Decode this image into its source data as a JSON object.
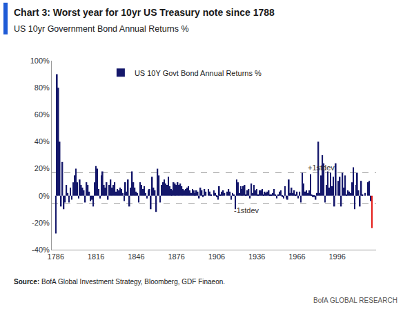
{
  "chart_data": {
    "type": "bar",
    "title": "Chart 3: Worst year for 10yr US Treasury note since 1788",
    "subtitle": "US 10yr Government Bond Annual Returns %",
    "source": "Source: BofA Global Investment Strategy, Bloomberg, GDF Finaeon.",
    "footer": "BofA GLOBAL RESEARCH",
    "x": [
      1786,
      1787,
      1788,
      1789,
      1790,
      1791,
      1792,
      1793,
      1794,
      1795,
      1796,
      1797,
      1798,
      1799,
      1800,
      1801,
      1802,
      1803,
      1804,
      1805,
      1806,
      1807,
      1808,
      1809,
      1810,
      1811,
      1812,
      1813,
      1814,
      1815,
      1816,
      1817,
      1818,
      1819,
      1820,
      1821,
      1822,
      1823,
      1824,
      1825,
      1826,
      1827,
      1828,
      1829,
      1830,
      1831,
      1832,
      1833,
      1834,
      1835,
      1836,
      1837,
      1838,
      1839,
      1840,
      1841,
      1842,
      1843,
      1844,
      1845,
      1846,
      1847,
      1848,
      1849,
      1850,
      1851,
      1852,
      1853,
      1854,
      1855,
      1856,
      1857,
      1858,
      1859,
      1860,
      1861,
      1862,
      1863,
      1864,
      1865,
      1866,
      1867,
      1868,
      1869,
      1870,
      1871,
      1872,
      1873,
      1874,
      1875,
      1876,
      1877,
      1878,
      1879,
      1880,
      1881,
      1882,
      1883,
      1884,
      1885,
      1886,
      1887,
      1888,
      1889,
      1890,
      1891,
      1892,
      1893,
      1894,
      1895,
      1896,
      1897,
      1898,
      1899,
      1900,
      1901,
      1902,
      1903,
      1904,
      1905,
      1906,
      1907,
      1908,
      1909,
      1910,
      1911,
      1912,
      1913,
      1914,
      1915,
      1916,
      1917,
      1918,
      1919,
      1920,
      1921,
      1922,
      1923,
      1924,
      1925,
      1926,
      1927,
      1928,
      1929,
      1930,
      1931,
      1932,
      1933,
      1934,
      1935,
      1936,
      1937,
      1938,
      1939,
      1940,
      1941,
      1942,
      1943,
      1944,
      1945,
      1946,
      1947,
      1948,
      1949,
      1950,
      1951,
      1952,
      1953,
      1954,
      1955,
      1956,
      1957,
      1958,
      1959,
      1960,
      1961,
      1962,
      1963,
      1964,
      1965,
      1966,
      1967,
      1968,
      1969,
      1970,
      1971,
      1972,
      1973,
      1974,
      1975,
      1976,
      1977,
      1978,
      1979,
      1980,
      1981,
      1982,
      1983,
      1984,
      1985,
      1986,
      1987,
      1988,
      1989,
      1990,
      1991,
      1992,
      1993,
      1994,
      1995,
      1996,
      1997,
      1998,
      1999,
      2000,
      2001,
      2002,
      2003,
      2004,
      2005,
      2006,
      2007,
      2008,
      2009,
      2010,
      2011,
      2012,
      2013,
      2014,
      2015,
      2016,
      2017,
      2018,
      2019,
      2020,
      2021,
      2022
    ],
    "series": [
      {
        "name": "US 10Y Govt Bond Annual Returns %",
        "values": [
          -28,
          90,
          80,
          40,
          -8,
          25,
          -10,
          -5,
          8,
          2,
          -5,
          6,
          -3,
          10,
          15,
          20,
          10,
          -2,
          12,
          8,
          6,
          4,
          -5,
          10,
          8,
          3,
          -4,
          -3,
          -8,
          10,
          22,
          20,
          5,
          -2,
          15,
          18,
          8,
          6,
          10,
          -3,
          8,
          12,
          6,
          8,
          10,
          3,
          5,
          4,
          6,
          5,
          2,
          -4,
          10,
          3,
          12,
          -8,
          6,
          18,
          10,
          6,
          3,
          2,
          -5,
          10,
          8,
          5,
          7,
          2,
          -2,
          4,
          5,
          -10,
          14,
          6,
          4,
          -12,
          20,
          15,
          -5,
          8,
          10,
          12,
          9,
          8,
          14,
          7,
          5,
          4,
          10,
          9,
          8,
          10,
          8,
          9,
          7,
          5,
          4,
          5,
          6,
          7,
          4,
          2,
          5,
          4,
          2,
          4,
          3,
          -2,
          6,
          4,
          -1,
          5,
          3,
          0,
          5,
          3,
          1,
          0,
          4,
          2,
          -1,
          -3,
          7,
          1,
          3,
          4,
          2,
          0,
          3,
          5,
          3,
          -3,
          2,
          1,
          -10,
          12,
          10,
          2,
          7,
          5,
          7,
          8,
          1,
          4,
          5,
          -2,
          9,
          2,
          8,
          4,
          5,
          1,
          4,
          4,
          5,
          1,
          3,
          2,
          3,
          4,
          1,
          1,
          2,
          5,
          1,
          -2,
          1,
          3,
          4,
          -1,
          -2,
          7,
          -2,
          -3,
          12,
          2,
          6,
          2,
          4,
          1,
          3,
          -2,
          3,
          -5,
          17,
          9,
          3,
          4,
          2,
          4,
          16,
          1,
          -1,
          -1,
          -3,
          2,
          40,
          2,
          15,
          30,
          24,
          -5,
          8,
          18,
          6,
          17,
          7,
          14,
          -8,
          24,
          0,
          11,
          14,
          -8,
          17,
          6,
          15,
          1,
          4,
          3,
          2,
          10,
          21,
          -10,
          8,
          17,
          4,
          -8,
          11,
          1,
          0,
          2,
          0,
          10,
          11,
          -4,
          -24
        ],
        "colors": [
          "#15186b",
          "#15186b",
          "#15186b",
          "#15186b",
          "#15186b",
          "#15186b",
          "#15186b",
          "#15186b",
          "#15186b",
          "#15186b",
          "#15186b",
          "#15186b",
          "#15186b",
          "#15186b",
          "#15186b",
          "#15186b",
          "#15186b",
          "#15186b",
          "#15186b",
          "#15186b",
          "#15186b",
          "#15186b",
          "#15186b",
          "#15186b",
          "#15186b",
          "#15186b",
          "#15186b",
          "#15186b",
          "#15186b",
          "#15186b",
          "#15186b",
          "#15186b",
          "#15186b",
          "#15186b",
          "#15186b",
          "#15186b",
          "#15186b",
          "#15186b",
          "#15186b",
          "#15186b",
          "#15186b",
          "#15186b",
          "#15186b",
          "#15186b",
          "#15186b",
          "#15186b",
          "#15186b",
          "#15186b",
          "#15186b",
          "#15186b",
          "#15186b",
          "#15186b",
          "#15186b",
          "#15186b",
          "#15186b",
          "#15186b",
          "#15186b",
          "#15186b",
          "#15186b",
          "#15186b",
          "#15186b",
          "#15186b",
          "#15186b",
          "#15186b",
          "#15186b",
          "#15186b",
          "#15186b",
          "#15186b",
          "#15186b",
          "#15186b",
          "#15186b",
          "#15186b",
          "#15186b",
          "#15186b",
          "#15186b",
          "#15186b",
          "#15186b",
          "#15186b",
          "#15186b",
          "#15186b",
          "#15186b",
          "#15186b",
          "#15186b",
          "#15186b",
          "#15186b",
          "#15186b",
          "#15186b",
          "#15186b",
          "#15186b",
          "#15186b",
          "#15186b",
          "#15186b",
          "#15186b",
          "#15186b",
          "#15186b",
          "#15186b",
          "#15186b",
          "#15186b",
          "#15186b",
          "#15186b",
          "#15186b",
          "#15186b",
          "#15186b",
          "#15186b",
          "#15186b",
          "#15186b",
          "#15186b",
          "#15186b",
          "#15186b",
          "#15186b",
          "#15186b",
          "#15186b",
          "#15186b",
          "#15186b",
          "#15186b",
          "#15186b",
          "#15186b",
          "#15186b",
          "#15186b",
          "#15186b",
          "#15186b",
          "#15186b",
          "#15186b",
          "#15186b",
          "#15186b",
          "#15186b",
          "#15186b",
          "#15186b",
          "#15186b",
          "#15186b",
          "#15186b",
          "#15186b",
          "#15186b",
          "#15186b",
          "#15186b",
          "#15186b",
          "#15186b",
          "#15186b",
          "#15186b",
          "#15186b",
          "#15186b",
          "#15186b",
          "#15186b",
          "#15186b",
          "#15186b",
          "#15186b",
          "#15186b",
          "#15186b",
          "#15186b",
          "#15186b",
          "#15186b",
          "#15186b",
          "#15186b",
          "#15186b",
          "#15186b",
          "#15186b",
          "#15186b",
          "#15186b",
          "#15186b",
          "#15186b",
          "#15186b",
          "#15186b",
          "#15186b",
          "#15186b",
          "#15186b",
          "#15186b",
          "#15186b",
          "#15186b",
          "#15186b",
          "#15186b",
          "#15186b",
          "#15186b",
          "#15186b",
          "#15186b",
          "#15186b",
          "#15186b",
          "#15186b",
          "#15186b",
          "#15186b",
          "#15186b",
          "#15186b",
          "#15186b",
          "#15186b",
          "#15186b",
          "#15186b",
          "#15186b",
          "#15186b",
          "#15186b",
          "#15186b",
          "#15186b",
          "#15186b",
          "#15186b",
          "#15186b",
          "#15186b",
          "#15186b",
          "#15186b",
          "#15186b",
          "#15186b",
          "#15186b",
          "#15186b",
          "#15186b",
          "#15186b",
          "#15186b",
          "#15186b",
          "#15186b",
          "#15186b",
          "#15186b",
          "#15186b",
          "#15186b",
          "#15186b",
          "#15186b",
          "#15186b",
          "#15186b",
          "#15186b",
          "#15186b",
          "#15186b",
          "#15186b",
          "#15186b",
          "#15186b",
          "#15186b",
          "#15186b",
          "#15186b",
          "#15186b",
          "#15186b",
          "#15186b",
          "#15186b",
          "#15186b",
          "#15186b",
          "#15186b",
          "#15186b",
          "#15186b",
          "#15186b",
          "#15186b",
          "#15186b",
          "#15186b",
          "#15186b",
          "#e41b17"
        ]
      }
    ],
    "xlim": [
      1783,
      2025
    ],
    "xticks": [
      1786,
      1816,
      1846,
      1876,
      1906,
      1936,
      1966,
      1996
    ],
    "ylim": [
      -40,
      100
    ],
    "yticks": [
      {
        "value": -40,
        "label": "-40%"
      },
      {
        "value": -20,
        "label": "-20%"
      },
      {
        "value": 0,
        "label": "0%"
      },
      {
        "value": 20,
        "label": "20%"
      },
      {
        "value": 40,
        "label": "40%"
      },
      {
        "value": 60,
        "label": "60%"
      },
      {
        "value": 80,
        "label": "80%"
      },
      {
        "value": 100,
        "label": "100%"
      }
    ],
    "stdev_lines": [
      {
        "value": 17,
        "label": "+1stdev"
      },
      {
        "value": -6,
        "label": "-1stdev"
      }
    ],
    "legend": "top left",
    "grid": false
  }
}
